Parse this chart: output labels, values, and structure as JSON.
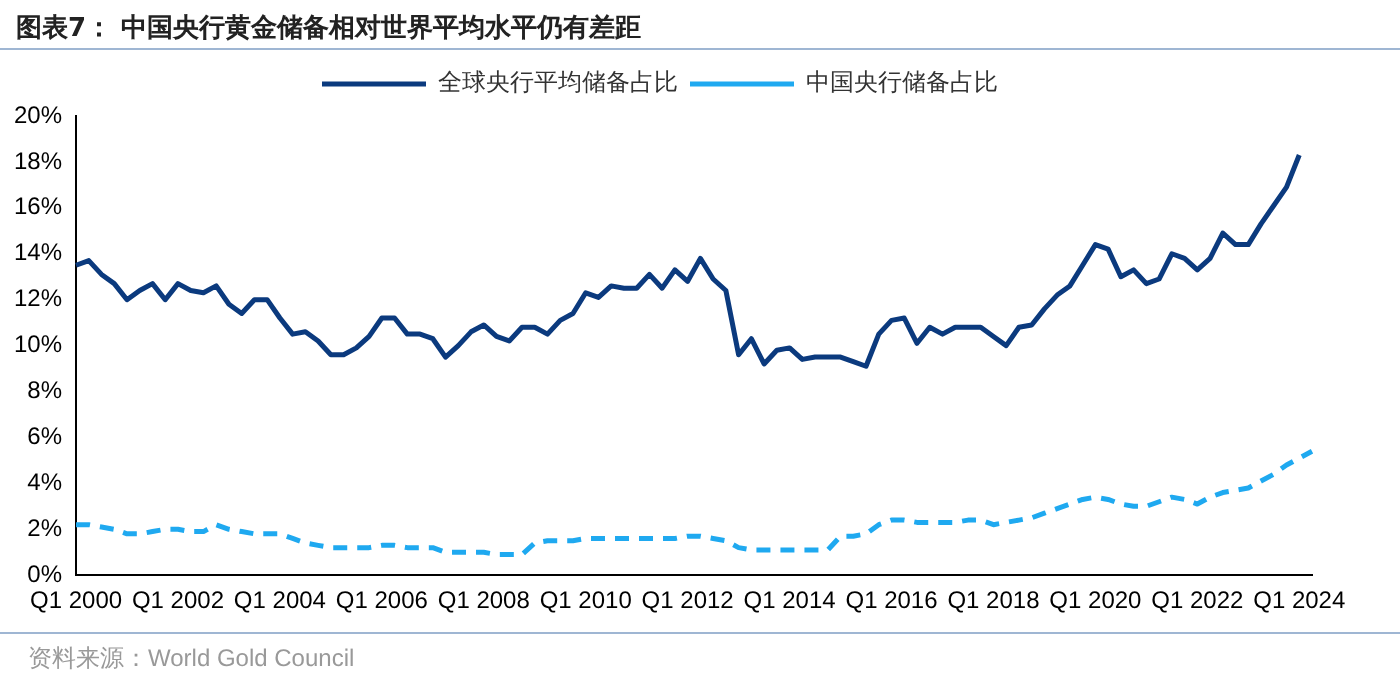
{
  "chart_data": {
    "type": "line",
    "title": "图表7：  中国央行黄金储备相对世界平均水平仍有差距",
    "categories": [
      "Q1 2000",
      null,
      null,
      null,
      null,
      null,
      null,
      null,
      "Q1 2002",
      null,
      null,
      null,
      null,
      null,
      null,
      null,
      "Q1 2004",
      null,
      null,
      null,
      null,
      null,
      null,
      null,
      "Q1 2006",
      null,
      null,
      null,
      null,
      null,
      null,
      null,
      "Q1 2008",
      null,
      null,
      null,
      null,
      null,
      null,
      null,
      "Q1 2010",
      null,
      null,
      null,
      null,
      null,
      null,
      null,
      "Q1 2012",
      null,
      null,
      null,
      null,
      null,
      null,
      null,
      "Q1 2014",
      null,
      null,
      null,
      null,
      null,
      null,
      null,
      "Q1 2016",
      null,
      null,
      null,
      null,
      null,
      null,
      null,
      "Q1 2018",
      null,
      null,
      null,
      null,
      null,
      null,
      null,
      "Q1 2020",
      null,
      null,
      null,
      null,
      null,
      null,
      null,
      "Q1 2022",
      null,
      null,
      null,
      null,
      null,
      null,
      null,
      "Q1 2024",
      null
    ],
    "series": [
      {
        "name": "全球央行平均储备占比",
        "color": "#0b3a7e",
        "line_style": "solid",
        "values": [
          13.5,
          13.7,
          13.1,
          12.7,
          12.0,
          12.4,
          12.7,
          12.0,
          12.7,
          12.4,
          12.3,
          12.6,
          11.8,
          11.4,
          12.0,
          12.0,
          11.2,
          10.5,
          10.6,
          10.2,
          9.6,
          9.6,
          9.9,
          10.4,
          11.2,
          11.2,
          10.5,
          10.5,
          10.3,
          9.5,
          10.0,
          10.6,
          10.9,
          10.4,
          10.2,
          10.8,
          10.8,
          10.5,
          11.1,
          11.4,
          12.3,
          12.1,
          12.6,
          12.5,
          12.5,
          13.1,
          12.5,
          13.3,
          12.8,
          13.8,
          12.9,
          12.4,
          9.6,
          10.3,
          9.2,
          9.8,
          9.9,
          9.4,
          9.5,
          9.5,
          9.5,
          9.3,
          9.1,
          10.5,
          11.1,
          11.2,
          10.1,
          10.8,
          10.5,
          10.8,
          10.8,
          10.8,
          10.4,
          10.0,
          10.8,
          10.9,
          11.6,
          12.2,
          12.6,
          13.5,
          14.4,
          14.2,
          13.0,
          13.3,
          12.7,
          12.9,
          14.0,
          13.8,
          13.3,
          13.8,
          14.9,
          14.4,
          14.4,
          15.3,
          16.1,
          16.9,
          18.3,
          null
        ]
      },
      {
        "name": "中国央行储备占比",
        "color": "#1fa9f0",
        "line_style": "dashed",
        "values": [
          2.2,
          2.2,
          2.1,
          2.0,
          1.8,
          1.8,
          1.9,
          2.0,
          2.0,
          1.9,
          1.9,
          2.2,
          2.0,
          1.9,
          1.8,
          1.8,
          1.8,
          1.6,
          1.4,
          1.3,
          1.2,
          1.2,
          1.2,
          1.2,
          1.3,
          1.3,
          1.2,
          1.2,
          1.2,
          1.0,
          1.0,
          1.0,
          1.0,
          0.9,
          0.9,
          0.9,
          1.4,
          1.5,
          1.5,
          1.5,
          1.6,
          1.6,
          1.6,
          1.6,
          1.6,
          1.6,
          1.6,
          1.6,
          1.7,
          1.7,
          1.6,
          1.5,
          1.2,
          1.1,
          1.1,
          1.1,
          1.1,
          1.1,
          1.1,
          1.1,
          1.7,
          1.7,
          1.8,
          2.2,
          2.4,
          2.4,
          2.3,
          2.3,
          2.3,
          2.3,
          2.4,
          2.4,
          2.2,
          2.3,
          2.4,
          2.5,
          2.7,
          2.9,
          3.1,
          3.3,
          3.4,
          3.3,
          3.1,
          3.0,
          3.0,
          3.2,
          3.4,
          3.3,
          3.1,
          3.4,
          3.6,
          3.7,
          3.8,
          4.1,
          4.4,
          4.8,
          5.1,
          5.4
        ]
      }
    ],
    "ylim": [
      0,
      20
    ],
    "yticks": [
      {
        "value": 0,
        "label": "0%"
      },
      {
        "value": 2,
        "label": "2%"
      },
      {
        "value": 4,
        "label": "4%"
      },
      {
        "value": 6,
        "label": "6%"
      },
      {
        "value": 8,
        "label": "8%"
      },
      {
        "value": 10,
        "label": "10%"
      },
      {
        "value": 12,
        "label": "12%"
      },
      {
        "value": 14,
        "label": "14%"
      },
      {
        "value": 16,
        "label": "16%"
      },
      {
        "value": 18,
        "label": "18%"
      },
      {
        "value": 20,
        "label": "20%"
      }
    ],
    "legend": "top",
    "marker": "none",
    "annotations": [
      "资料来源：World Gold Council"
    ]
  }
}
